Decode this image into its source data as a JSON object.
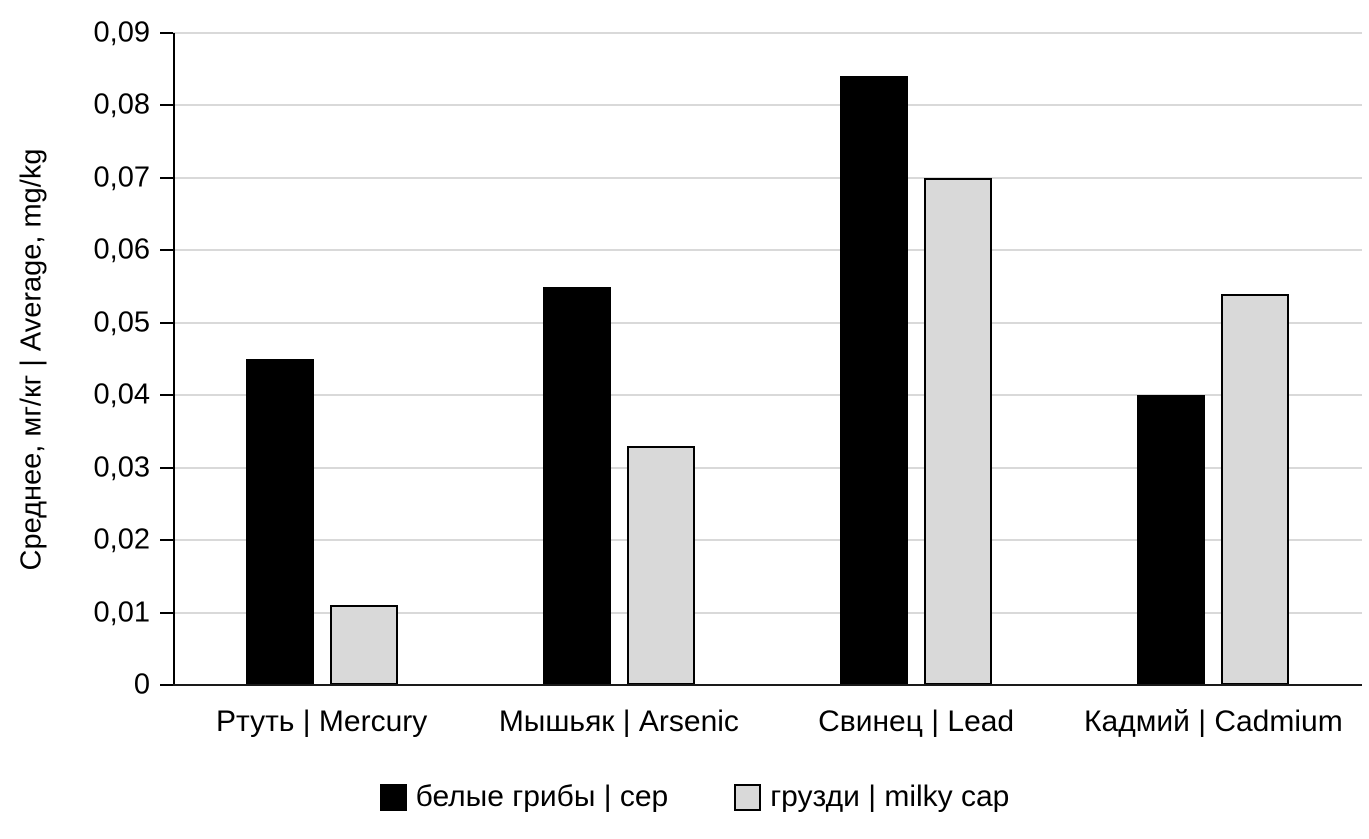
{
  "chart_data": {
    "type": "bar",
    "title": "",
    "ylabel": "Среднее, мг/кг | Average, mg/kg",
    "xlabel": "",
    "ylim": [
      0,
      0.09
    ],
    "grid": true,
    "legend_position": "bottom",
    "y_ticks": [
      {
        "value": 0.0,
        "label": "0"
      },
      {
        "value": 0.01,
        "label": "0,01"
      },
      {
        "value": 0.02,
        "label": "0,02"
      },
      {
        "value": 0.03,
        "label": "0,03"
      },
      {
        "value": 0.04,
        "label": "0,04"
      },
      {
        "value": 0.05,
        "label": "0,05"
      },
      {
        "value": 0.06,
        "label": "0,06"
      },
      {
        "value": 0.07,
        "label": "0,07"
      },
      {
        "value": 0.08,
        "label": "0,08"
      },
      {
        "value": 0.09,
        "label": "0,09"
      }
    ],
    "categories": [
      "Ртуть | Mercury",
      "Мышьяк | Arsenic",
      "Свинец | Lead",
      "Кадмий | Cadmium"
    ],
    "series": [
      {
        "name": "белые грибы | cep",
        "fill": "#000000",
        "border": "#000000",
        "values": [
          0.045,
          0.055,
          0.084,
          0.04
        ]
      },
      {
        "name": "грузди | milky cap",
        "fill": "#d9d9d9",
        "border": "#000000",
        "values": [
          0.011,
          0.033,
          0.07,
          0.054
        ]
      }
    ],
    "colors": {
      "gridline": "#d9d9d9",
      "axis": "#000000",
      "text": "#000000",
      "background": "#ffffff"
    }
  }
}
